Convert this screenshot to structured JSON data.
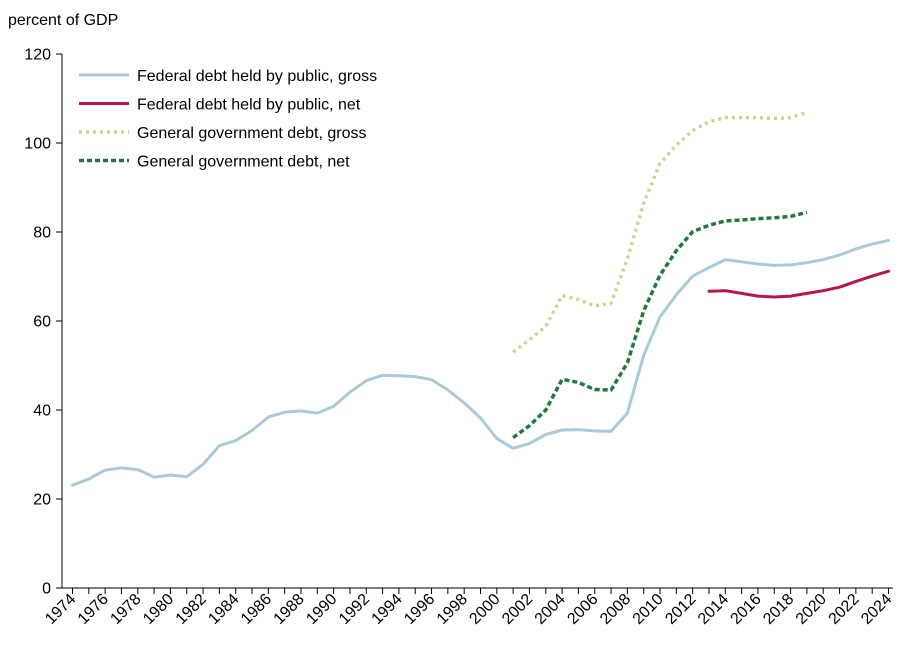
{
  "chart_data": {
    "type": "line",
    "y_unit_label": "percent of GDP",
    "ylim": [
      0,
      120
    ],
    "yticks": [
      0,
      20,
      40,
      60,
      80,
      100,
      120
    ],
    "xlim": [
      1974,
      2024
    ],
    "xtick_labels": [
      "1974",
      "1976",
      "1978",
      "1980",
      "1982",
      "1984",
      "1986",
      "1988",
      "1990",
      "1992",
      "1994",
      "1996",
      "1998",
      "2000",
      "2002",
      "2004",
      "2006",
      "2008",
      "2010",
      "2012",
      "2014",
      "2016",
      "2018",
      "2020",
      "2022",
      "2024"
    ],
    "grid": false,
    "legend_position": "top-left",
    "series": [
      {
        "name": "Federal debt held by public, gross",
        "color": "#a9cbd8",
        "style": "solid",
        "x": [
          1974,
          1975,
          1976,
          1977,
          1978,
          1979,
          1980,
          1981,
          1982,
          1983,
          1984,
          1985,
          1986,
          1987,
          1988,
          1989,
          1990,
          1991,
          1992,
          1993,
          1994,
          1995,
          1996,
          1997,
          1998,
          1999,
          2000,
          2001,
          2002,
          2003,
          2004,
          2005,
          2006,
          2007,
          2008,
          2009,
          2010,
          2011,
          2012,
          2013,
          2014,
          2015,
          2016,
          2017,
          2018,
          2019,
          2020,
          2021,
          2022,
          2023,
          2024
        ],
        "y": [
          23.1,
          24.5,
          26.5,
          27.0,
          26.6,
          24.9,
          25.4,
          25.0,
          27.8,
          32.0,
          33.1,
          35.4,
          38.4,
          39.5,
          39.8,
          39.3,
          40.8,
          44.0,
          46.6,
          47.8,
          47.7,
          47.5,
          46.8,
          44.5,
          41.6,
          38.2,
          33.6,
          31.4,
          32.5,
          34.5,
          35.5,
          35.6,
          35.3,
          35.2,
          39.3,
          52.3,
          60.9,
          65.9,
          70.1,
          72.0,
          73.8,
          73.3,
          72.8,
          72.5,
          72.6,
          73.1,
          73.8,
          74.8,
          76.2,
          77.3,
          78.1
        ]
      },
      {
        "name": "Federal debt held by public, net",
        "color": "#b5164b",
        "style": "solid",
        "x": [
          2013,
          2014,
          2015,
          2016,
          2017,
          2018,
          2019,
          2020,
          2021,
          2022,
          2023,
          2024
        ],
        "y": [
          66.7,
          66.8,
          66.2,
          65.6,
          65.4,
          65.6,
          66.2,
          66.8,
          67.6,
          68.9,
          70.1,
          71.2
        ]
      },
      {
        "name": "General government debt, gross",
        "color": "#c5d88c",
        "style": "dotted",
        "x": [
          2001,
          2002,
          2003,
          2004,
          2005,
          2006,
          2007,
          2008,
          2009,
          2010,
          2011,
          2012,
          2013,
          2014,
          2015,
          2016,
          2017,
          2018,
          2019
        ],
        "y": [
          53.0,
          55.8,
          58.8,
          65.7,
          64.8,
          63.4,
          64.0,
          74.0,
          86.5,
          95.4,
          99.5,
          102.8,
          104.8,
          105.7,
          105.7,
          105.7,
          105.5,
          105.7,
          106.9
        ]
      },
      {
        "name": "General government debt, net",
        "color": "#1f7a3c",
        "style": "dashed",
        "x": [
          2001,
          2002,
          2003,
          2004,
          2005,
          2006,
          2007,
          2008,
          2009,
          2010,
          2011,
          2012,
          2013,
          2014,
          2015,
          2016,
          2017,
          2018,
          2019
        ],
        "y": [
          33.8,
          36.5,
          40.0,
          46.9,
          46.2,
          44.6,
          44.5,
          50.6,
          62.3,
          70.3,
          75.8,
          80.1,
          81.5,
          82.5,
          82.7,
          83.0,
          83.2,
          83.5,
          84.4
        ]
      }
    ]
  }
}
